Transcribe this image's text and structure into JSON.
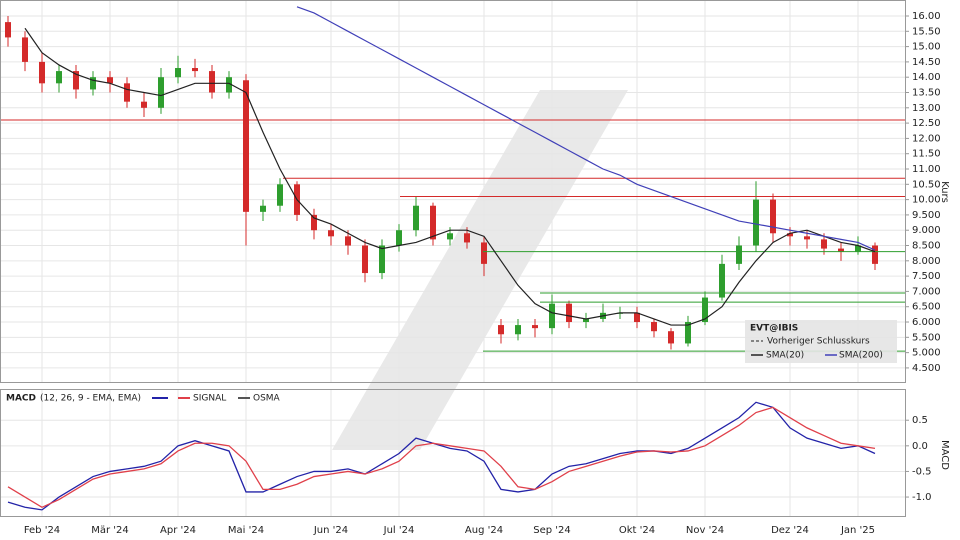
{
  "chart_data": [
    {
      "type": "candlestick",
      "axis_label": "Kurs",
      "legend_title": "EVT@IBIS",
      "up_color": "#2e9e2e",
      "down_color": "#d42a2a",
      "open": [
        15.8,
        15.3,
        14.5,
        13.8,
        14.2,
        13.6,
        14.0,
        13.8,
        13.2,
        13.0,
        14.0,
        14.3,
        14.2,
        13.5,
        13.9,
        9.6,
        9.8,
        10.5,
        9.5,
        9.0,
        8.8,
        8.5,
        7.6,
        8.5,
        9.0,
        9.8,
        8.7,
        8.9,
        8.6,
        5.9,
        5.6,
        5.9,
        5.8,
        6.6,
        6.0,
        6.1,
        6.3,
        6.3,
        6.0,
        5.7,
        5.3,
        6.0,
        6.8,
        7.9,
        8.5,
        10.0,
        8.9,
        8.8,
        8.7,
        8.4,
        8.3,
        8.5
      ],
      "high": [
        16.0,
        15.5,
        14.8,
        14.4,
        14.4,
        14.2,
        14.2,
        14.0,
        13.5,
        14.3,
        14.7,
        14.6,
        14.4,
        14.2,
        14.1,
        10.0,
        10.7,
        10.6,
        9.7,
        9.2,
        9.0,
        8.7,
        8.7,
        9.2,
        10.1,
        9.9,
        9.1,
        9.1,
        8.8,
        6.1,
        6.1,
        6.1,
        6.9,
        6.7,
        6.3,
        6.6,
        6.5,
        6.5,
        6.1,
        5.8,
        6.2,
        7.0,
        8.2,
        8.8,
        10.6,
        10.2,
        9.1,
        9.0,
        8.9,
        8.6,
        8.8,
        8.6
      ],
      "low": [
        15.0,
        14.2,
        13.5,
        13.5,
        13.3,
        13.4,
        13.5,
        13.0,
        12.7,
        12.8,
        13.8,
        14.0,
        13.3,
        13.3,
        8.5,
        9.3,
        9.6,
        9.3,
        8.7,
        8.5,
        8.2,
        7.3,
        7.4,
        8.3,
        8.8,
        8.5,
        8.5,
        8.4,
        7.5,
        5.3,
        5.4,
        5.5,
        5.6,
        5.8,
        5.8,
        6.0,
        6.1,
        5.8,
        5.5,
        5.1,
        5.2,
        5.9,
        6.7,
        7.7,
        8.3,
        8.6,
        8.5,
        8.4,
        8.2,
        8.0,
        8.2,
        7.7
      ],
      "close": [
        15.3,
        14.5,
        13.8,
        14.2,
        13.6,
        14.0,
        13.8,
        13.2,
        13.0,
        14.0,
        14.3,
        14.2,
        13.5,
        14.0,
        9.6,
        9.8,
        10.5,
        9.5,
        9.0,
        8.8,
        8.5,
        7.6,
        8.5,
        9.0,
        9.8,
        8.7,
        8.9,
        8.6,
        7.9,
        5.6,
        5.9,
        5.8,
        6.6,
        6.0,
        6.1,
        6.3,
        6.3,
        6.0,
        5.7,
        5.3,
        6.0,
        6.8,
        7.9,
        8.5,
        10.0,
        8.9,
        8.8,
        8.7,
        8.4,
        8.3,
        8.5,
        7.9
      ],
      "series": [
        {
          "name": "SMA(20)",
          "color": "#222222",
          "values": [
            null,
            15.6,
            14.8,
            14.4,
            14.1,
            13.9,
            13.8,
            13.6,
            13.5,
            13.4,
            13.6,
            13.8,
            13.8,
            13.8,
            13.5,
            12.2,
            11.0,
            10.0,
            9.4,
            9.2,
            8.9,
            8.6,
            8.4,
            8.5,
            8.6,
            8.8,
            9.0,
            9.0,
            8.8,
            8.0,
            7.2,
            6.6,
            6.3,
            6.2,
            6.1,
            6.2,
            6.3,
            6.3,
            6.1,
            5.9,
            5.9,
            6.1,
            6.5,
            7.3,
            8.0,
            8.6,
            8.9,
            9.0,
            8.8,
            8.6,
            8.5,
            8.3
          ]
        },
        {
          "name": "SMA(200)",
          "color": "#4040b8",
          "values": [
            null,
            null,
            null,
            null,
            null,
            null,
            null,
            null,
            null,
            null,
            null,
            null,
            null,
            null,
            null,
            null,
            null,
            16.3,
            16.1,
            15.8,
            15.5,
            15.2,
            14.9,
            14.6,
            14.3,
            14.0,
            13.7,
            13.4,
            13.1,
            12.8,
            12.5,
            12.2,
            11.9,
            11.6,
            11.3,
            11.0,
            10.8,
            10.5,
            10.3,
            10.1,
            9.9,
            9.7,
            9.5,
            9.3,
            9.2,
            9.1,
            9.0,
            8.9,
            8.8,
            8.7,
            8.6,
            8.35
          ]
        }
      ],
      "prev_close": {
        "name": "Vorheriger Schlusskurs"
      },
      "levels": [
        {
          "value": 12.6,
          "color": "#d42a2a"
        },
        {
          "value": 10.7,
          "color": "#d42a2a"
        },
        {
          "value": 10.1,
          "color": "#d42a2a"
        },
        {
          "value": 8.3,
          "color": "#2e9e2e"
        },
        {
          "value": 6.95,
          "color": "#2e9e2e"
        },
        {
          "value": 6.65,
          "color": "#2e9e2e"
        },
        {
          "value": 5.05,
          "color": "#2e9e2e"
        }
      ],
      "ylim": [
        4.04,
        16.49
      ],
      "yticks": [
        {
          "value": 4.5,
          "label": "4.500"
        },
        {
          "value": 5,
          "label": "5.000"
        },
        {
          "value": 5.5,
          "label": "5.500"
        },
        {
          "value": 6,
          "label": "6.000"
        },
        {
          "value": 6.5,
          "label": "6.500"
        },
        {
          "value": 7,
          "label": "7.000"
        },
        {
          "value": 7.5,
          "label": "7.500"
        },
        {
          "value": 8,
          "label": "8.000"
        },
        {
          "value": 8.5,
          "label": "8.500"
        },
        {
          "value": 9,
          "label": "9.000"
        },
        {
          "value": 9.5,
          "label": "9.500"
        },
        {
          "value": 10,
          "label": "10.00"
        },
        {
          "value": 10.5,
          "label": "10.50"
        },
        {
          "value": 11,
          "label": "11.00"
        },
        {
          "value": 11.5,
          "label": "11.50"
        },
        {
          "value": 12,
          "label": "12.00"
        },
        {
          "value": 12.5,
          "label": "12.50"
        },
        {
          "value": 13,
          "label": "13.00"
        },
        {
          "value": 13.5,
          "label": "13.50"
        },
        {
          "value": 14,
          "label": "14.00"
        },
        {
          "value": 14.5,
          "label": "14.50"
        },
        {
          "value": 15,
          "label": "15.00"
        },
        {
          "value": 15.5,
          "label": "15.50"
        },
        {
          "value": 16,
          "label": "16.00"
        }
      ],
      "grid": true
    },
    {
      "type": "line",
      "title": "MACD",
      "subtitle": "(12, 26, 9 - EMA, EMA)",
      "axis_label": "MACD",
      "categories": [
        null,
        null,
        "Feb '24",
        null,
        null,
        null,
        "Mär '24",
        null,
        null,
        null,
        "Apr '24",
        null,
        null,
        null,
        "Mai '24",
        null,
        null,
        null,
        null,
        "Jun '24",
        null,
        null,
        null,
        "Jul '24",
        null,
        null,
        null,
        null,
        "Aug '24",
        null,
        null,
        null,
        "Sep '24",
        null,
        null,
        null,
        null,
        "Okt '24",
        null,
        null,
        null,
        "Nov '24",
        null,
        null,
        null,
        null,
        "Dez '24",
        null,
        null,
        null,
        "Jan '25",
        null
      ],
      "series": [
        {
          "color": "#2323a8",
          "values": [
            -1.1,
            -1.2,
            -1.25,
            -1.0,
            -0.8,
            -0.6,
            -0.5,
            -0.45,
            -0.4,
            -0.3,
            0.0,
            0.1,
            0.0,
            -0.1,
            -0.9,
            -0.9,
            -0.75,
            -0.6,
            -0.5,
            -0.5,
            -0.45,
            -0.55,
            -0.35,
            -0.15,
            0.15,
            0.05,
            -0.05,
            -0.1,
            -0.3,
            -0.85,
            -0.9,
            -0.85,
            -0.55,
            -0.4,
            -0.35,
            -0.25,
            -0.15,
            -0.1,
            -0.1,
            -0.15,
            -0.05,
            0.15,
            0.35,
            0.55,
            0.85,
            0.75,
            0.35,
            0.15,
            0.05,
            -0.05,
            0.0,
            -0.15
          ]
        },
        {
          "name": "SIGNAL",
          "color": "#e0404a",
          "values": [
            -0.8,
            -1.0,
            -1.2,
            -1.05,
            -0.85,
            -0.65,
            -0.55,
            -0.5,
            -0.45,
            -0.35,
            -0.1,
            0.05,
            0.05,
            0.0,
            -0.3,
            -0.85,
            -0.85,
            -0.75,
            -0.6,
            -0.55,
            -0.5,
            -0.55,
            -0.45,
            -0.3,
            0.0,
            0.05,
            0.0,
            -0.05,
            -0.1,
            -0.4,
            -0.8,
            -0.85,
            -0.7,
            -0.5,
            -0.4,
            -0.3,
            -0.2,
            -0.12,
            -0.1,
            -0.12,
            -0.1,
            0.0,
            0.2,
            0.4,
            0.65,
            0.75,
            0.55,
            0.35,
            0.2,
            0.05,
            0.0,
            -0.05
          ]
        }
      ],
      "osma": {
        "name": "OSMA",
        "color": "#555555"
      },
      "ylim": [
        -1.37,
        1.09
      ],
      "yticks": [
        0.5,
        {
          "value": 0,
          "label": "0.0"
        },
        -0.5,
        {
          "value": -1,
          "label": "-1.0"
        }
      ],
      "grid": true
    }
  ]
}
